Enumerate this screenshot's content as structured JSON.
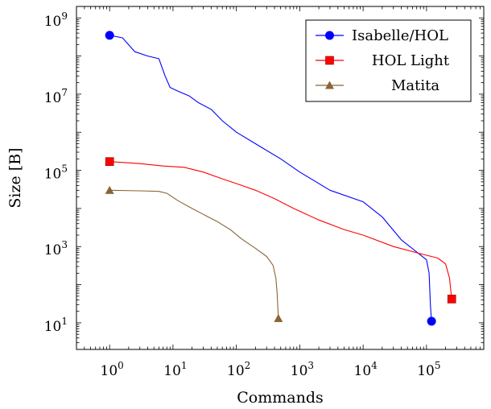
{
  "chart_data": {
    "type": "line",
    "title": "",
    "xlabel": "Commands",
    "ylabel": "Size [B]",
    "x_scale": "log",
    "y_scale": "log",
    "xlim": [
      0.3,
      800000
    ],
    "ylim": [
      2,
      2000000000
    ],
    "grid": false,
    "legend_position": "top-right",
    "x_ticks": [
      {
        "value": 1,
        "base": "10",
        "exp": "0"
      },
      {
        "value": 10,
        "base": "10",
        "exp": "1"
      },
      {
        "value": 100,
        "base": "10",
        "exp": "2"
      },
      {
        "value": 1000,
        "base": "10",
        "exp": "3"
      },
      {
        "value": 10000,
        "base": "10",
        "exp": "4"
      },
      {
        "value": 100000,
        "base": "10",
        "exp": "5"
      }
    ],
    "y_ticks": [
      {
        "value": 10,
        "base": "10",
        "exp": "1"
      },
      {
        "value": 1000,
        "base": "10",
        "exp": "3"
      },
      {
        "value": 100000,
        "base": "10",
        "exp": "5"
      },
      {
        "value": 10000000,
        "base": "10",
        "exp": "7"
      },
      {
        "value": 1000000000,
        "base": "10",
        "exp": "9"
      }
    ],
    "series": [
      {
        "name": "Isabelle/HOL",
        "color": "#0000ff",
        "marker": "circle",
        "points": [
          [
            1,
            350000000
          ],
          [
            1.6,
            300000000
          ],
          [
            2.5,
            130000000
          ],
          [
            4,
            100000000
          ],
          [
            6,
            85000000
          ],
          [
            7.5,
            30000000
          ],
          [
            9,
            15000000
          ],
          [
            12,
            12000000
          ],
          [
            18,
            9000000
          ],
          [
            25,
            6000000
          ],
          [
            40,
            4000000
          ],
          [
            60,
            2000000
          ],
          [
            100,
            1000000
          ],
          [
            200,
            500000
          ],
          [
            500,
            200000
          ],
          [
            1000,
            90000
          ],
          [
            3000,
            30000
          ],
          [
            10000,
            15000
          ],
          [
            20000,
            6000
          ],
          [
            40000,
            1500
          ],
          [
            80000,
            600
          ],
          [
            100000,
            450
          ],
          [
            110000,
            200
          ],
          [
            115000,
            30
          ],
          [
            120000,
            11
          ]
        ]
      },
      {
        "name": "HOL Light",
        "color": "#ff0000",
        "marker": "square",
        "points": [
          [
            1,
            170000
          ],
          [
            3,
            150000
          ],
          [
            7,
            130000
          ],
          [
            15,
            120000
          ],
          [
            30,
            90000
          ],
          [
            60,
            60000
          ],
          [
            100,
            45000
          ],
          [
            200,
            30000
          ],
          [
            400,
            18000
          ],
          [
            800,
            10000
          ],
          [
            2000,
            5000
          ],
          [
            5000,
            2800
          ],
          [
            10000,
            2000
          ],
          [
            30000,
            1000
          ],
          [
            80000,
            650
          ],
          [
            150000,
            500
          ],
          [
            200000,
            350
          ],
          [
            230000,
            150
          ],
          [
            250000,
            42
          ]
        ]
      },
      {
        "name": "Matita",
        "color": "#8b6435",
        "marker": "triangle",
        "points": [
          [
            1,
            30000
          ],
          [
            3,
            29000
          ],
          [
            6,
            28000
          ],
          [
            8,
            25000
          ],
          [
            12,
            16000
          ],
          [
            20,
            10000
          ],
          [
            30,
            7000
          ],
          [
            50,
            4500
          ],
          [
            80,
            2800
          ],
          [
            120,
            1600
          ],
          [
            200,
            900
          ],
          [
            300,
            550
          ],
          [
            380,
            320
          ],
          [
            420,
            150
          ],
          [
            440,
            60
          ],
          [
            460,
            13
          ]
        ]
      }
    ]
  }
}
